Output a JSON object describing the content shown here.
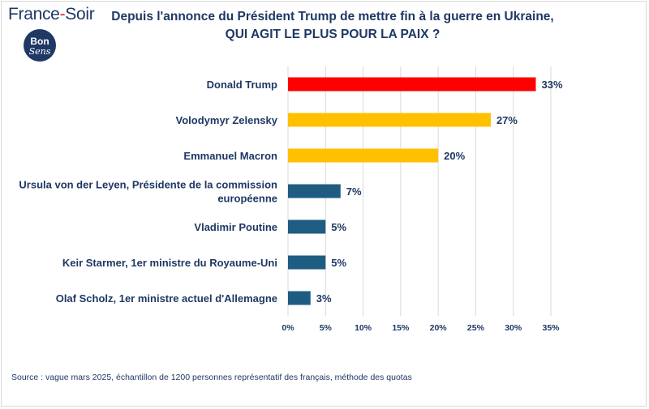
{
  "header": {
    "brand_name": "France",
    "brand_dash": "-",
    "brand_suffix": "Soir",
    "badge_line1": "Bon",
    "badge_line2": "Sens"
  },
  "title_line1": "Depuis l'annonce du Président Trump de mettre fin à la guerre en Ukraine,",
  "title_line2": "QUI AGIT LE PLUS POUR LA PAIX  ?",
  "source": "Source : vague mars 2025, échantillon de 1200 personnes représentatif des français, méthode des quotas",
  "chart_data": {
    "type": "bar",
    "orientation": "horizontal",
    "categories": [
      [
        "Donald Trump"
      ],
      [
        "Volodymyr Zelensky"
      ],
      [
        "Emmanuel Macron"
      ],
      [
        "Ursula von der Leyen, Présidente de la commission",
        "européenne"
      ],
      [
        "Vladimir Poutine"
      ],
      [
        "Keir Starmer, 1er ministre du Royaume-Uni"
      ],
      [
        "Olaf Scholz, 1er ministre actuel d'Allemagne"
      ]
    ],
    "values": [
      33,
      27,
      20,
      7,
      5,
      5,
      3
    ],
    "value_labels": [
      "33%",
      "27%",
      "20%",
      "7%",
      "5%",
      "5%",
      "3%"
    ],
    "colors": [
      "#ff0000",
      "#ffc000",
      "#ffc000",
      "#1f5c82",
      "#1f5c82",
      "#1f5c82",
      "#1f5c82"
    ],
    "xlim": [
      0,
      35
    ],
    "xticks": [
      0,
      5,
      10,
      15,
      20,
      25,
      30,
      35
    ],
    "xtick_labels": [
      "0%",
      "5%",
      "10%",
      "15%",
      "20%",
      "25%",
      "30%",
      "35%"
    ],
    "grid": true
  }
}
